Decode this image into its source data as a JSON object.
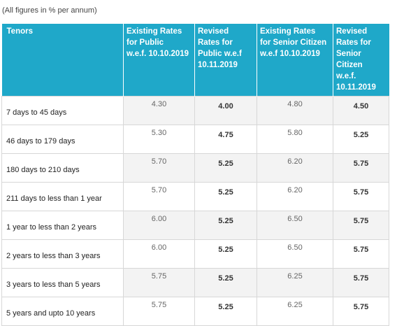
{
  "note": "(All figures in % per annum)",
  "headers": [
    [
      "Tenors"
    ],
    [
      "Existing Rates",
      "for Public",
      "w.e.f. 10.10.2019"
    ],
    [
      "Revised",
      "Rates for",
      "Public  w.e.f",
      "10.11.2019"
    ],
    [
      "Existing Rates",
      "for Senior Citizen",
      "w.e.f 10.10.2019"
    ],
    [
      "Revised",
      "Rates for",
      "Senior",
      "Citizen",
      "w.e.f.",
      "10.11.2019"
    ]
  ],
  "rows": [
    {
      "tenor": "7 days to 45 days",
      "existing_public": "4.30",
      "revised_public": "4.00",
      "existing_senior": "4.80",
      "revised_senior": "4.50"
    },
    {
      "tenor": "46 days to 179 days",
      "existing_public": "5.30",
      "revised_public": "4.75",
      "existing_senior": "5.80",
      "revised_senior": "5.25"
    },
    {
      "tenor": "180 days to 210 days",
      "existing_public": "5.70",
      "revised_public": "5.25",
      "existing_senior": "6.20",
      "revised_senior": "5.75"
    },
    {
      "tenor": "211 days to less than 1 year",
      "existing_public": "5.70",
      "revised_public": "5.25",
      "existing_senior": "6.20",
      "revised_senior": "5.75"
    },
    {
      "tenor": "1 year to less than 2 years",
      "existing_public": "6.00",
      "revised_public": "5.25",
      "existing_senior": "6.50",
      "revised_senior": "5.75"
    },
    {
      "tenor": "2 years to less than 3 years",
      "existing_public": "6.00",
      "revised_public": "5.25",
      "existing_senior": "6.50",
      "revised_senior": "5.75"
    },
    {
      "tenor": "3 years to less than 5 years",
      "existing_public": "5.75",
      "revised_public": "5.25",
      "existing_senior": "6.25",
      "revised_senior": "5.75"
    },
    {
      "tenor": "5 years and upto 10 years",
      "existing_public": "5.75",
      "revised_public": "5.25",
      "existing_senior": "6.25",
      "revised_senior": "5.75"
    }
  ],
  "colors": {
    "header_bg": "#1fa8c9",
    "header_text": "#ffffff",
    "alt_row_bg": "#f3f3f3",
    "border": "#d7d7d7"
  }
}
